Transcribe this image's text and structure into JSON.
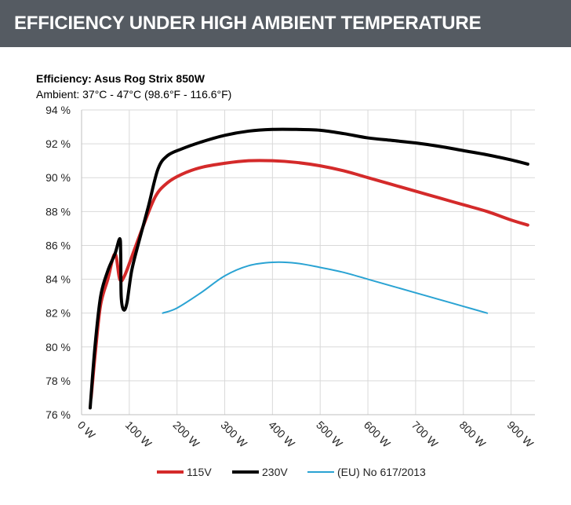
{
  "header": {
    "title": "EFFICIENCY UNDER HIGH AMBIENT TEMPERATURE"
  },
  "chart_data": {
    "type": "line",
    "title": "Efficiency: Asus Rog Strix 850W",
    "subtitle": "Ambient: 37°C - 47°C (98.6°F - 116.6°F)",
    "xlabel": "",
    "ylabel": "",
    "xlim": [
      0,
      950
    ],
    "ylim": [
      76,
      94
    ],
    "grid": true,
    "legend": "bottom",
    "x_ticks": [
      0,
      100,
      200,
      300,
      400,
      500,
      600,
      700,
      800,
      900
    ],
    "x_tick_labels": [
      "0 W",
      "100 W",
      "200 W",
      "300 W",
      "400 W",
      "500 W",
      "600 W",
      "700 W",
      "800 W",
      "900 W"
    ],
    "y_ticks": [
      76,
      78,
      80,
      82,
      84,
      86,
      88,
      90,
      92,
      94
    ],
    "y_tick_labels": [
      "76 %",
      "78 %",
      "80 %",
      "82 %",
      "84 %",
      "86 %",
      "88 %",
      "90 %",
      "92 %",
      "94 %"
    ],
    "series": [
      {
        "name": "115V",
        "color": "#d42a2a",
        "width": 4,
        "points": [
          [
            20,
            77.0
          ],
          [
            30,
            80.0
          ],
          [
            40,
            82.5
          ],
          [
            55,
            84.0
          ],
          [
            70,
            85.5
          ],
          [
            80,
            84.0
          ],
          [
            90,
            84.2
          ],
          [
            110,
            85.7
          ],
          [
            130,
            87.2
          ],
          [
            155,
            88.9
          ],
          [
            180,
            89.7
          ],
          [
            210,
            90.2
          ],
          [
            250,
            90.6
          ],
          [
            300,
            90.85
          ],
          [
            350,
            91.0
          ],
          [
            400,
            91.0
          ],
          [
            450,
            90.9
          ],
          [
            500,
            90.7
          ],
          [
            550,
            90.4
          ],
          [
            600,
            90.0
          ],
          [
            650,
            89.6
          ],
          [
            700,
            89.2
          ],
          [
            750,
            88.8
          ],
          [
            800,
            88.4
          ],
          [
            850,
            88.0
          ],
          [
            900,
            87.5
          ],
          [
            935,
            87.2
          ]
        ]
      },
      {
        "name": "230V",
        "color": "#000000",
        "width": 4,
        "points": [
          [
            18,
            76.4
          ],
          [
            28,
            80.0
          ],
          [
            40,
            83.0
          ],
          [
            55,
            84.5
          ],
          [
            70,
            85.5
          ],
          [
            80,
            86.4
          ],
          [
            82,
            85.5
          ],
          [
            83,
            83.0
          ],
          [
            88,
            82.2
          ],
          [
            95,
            82.6
          ],
          [
            105,
            84.5
          ],
          [
            120,
            86.2
          ],
          [
            140,
            88.3
          ],
          [
            160,
            90.5
          ],
          [
            180,
            91.3
          ],
          [
            210,
            91.7
          ],
          [
            250,
            92.1
          ],
          [
            300,
            92.5
          ],
          [
            350,
            92.75
          ],
          [
            400,
            92.85
          ],
          [
            450,
            92.85
          ],
          [
            500,
            92.8
          ],
          [
            550,
            92.6
          ],
          [
            600,
            92.35
          ],
          [
            650,
            92.2
          ],
          [
            700,
            92.05
          ],
          [
            750,
            91.85
          ],
          [
            800,
            91.6
          ],
          [
            850,
            91.35
          ],
          [
            900,
            91.05
          ],
          [
            935,
            90.8
          ]
        ]
      },
      {
        "name": "(EU) No 617/2013",
        "color": "#2aa3d3",
        "width": 2,
        "points": [
          [
            170,
            82.0
          ],
          [
            200,
            82.3
          ],
          [
            250,
            83.2
          ],
          [
            300,
            84.2
          ],
          [
            350,
            84.8
          ],
          [
            400,
            85.0
          ],
          [
            450,
            84.95
          ],
          [
            500,
            84.7
          ],
          [
            550,
            84.4
          ],
          [
            600,
            84.0
          ],
          [
            650,
            83.6
          ],
          [
            700,
            83.2
          ],
          [
            750,
            82.8
          ],
          [
            800,
            82.4
          ],
          [
            850,
            82.0
          ]
        ]
      }
    ]
  }
}
